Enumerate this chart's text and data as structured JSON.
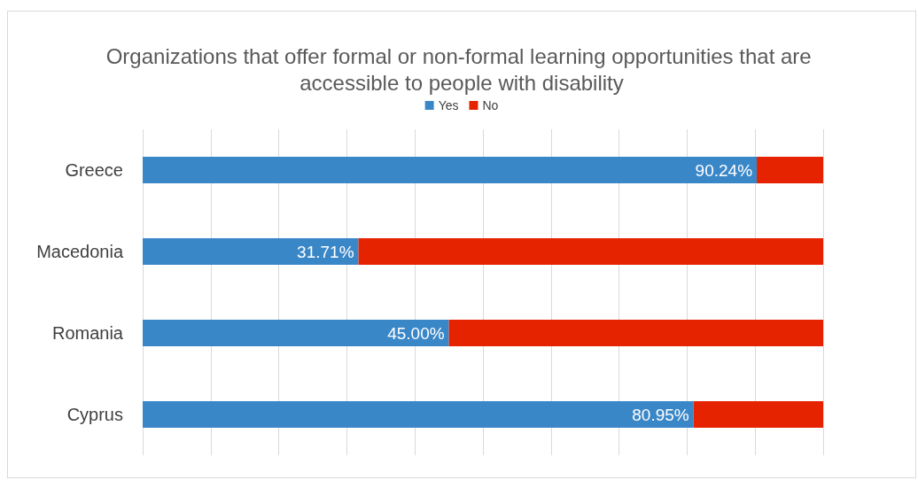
{
  "chart_data": {
    "type": "bar",
    "orientation": "horizontal",
    "stacked": true,
    "title": "Organizations that offer formal or non-formal learning opportunities that are accessible to people with disability",
    "categories": [
      "Greece",
      "Macedonia",
      "Romania",
      "Cyprus"
    ],
    "series": [
      {
        "name": "Yes",
        "color": "#3a87c8",
        "values": [
          90.24,
          31.71,
          45.0,
          80.95
        ],
        "value_labels": [
          "90.24%",
          "31.71%",
          "45.00%",
          "80.95%"
        ]
      },
      {
        "name": "No",
        "color": "#e52300",
        "values": [
          9.76,
          68.29,
          55.0,
          19.05
        ]
      }
    ],
    "xlim": [
      0,
      100
    ],
    "xticks": [
      {
        "value": 0,
        "label": null
      },
      {
        "value": 10,
        "label": null
      },
      {
        "value": 20,
        "label": null
      },
      {
        "value": 30,
        "label": null
      },
      {
        "value": 40,
        "label": null
      },
      {
        "value": 50,
        "label": null
      },
      {
        "value": 60,
        "label": null
      },
      {
        "value": 70,
        "label": null
      },
      {
        "value": 80,
        "label": null
      },
      {
        "value": 90,
        "label": null
      },
      {
        "value": 100,
        "label": null
      }
    ],
    "tick_labels": "y",
    "grid": "x",
    "legend": "top"
  }
}
